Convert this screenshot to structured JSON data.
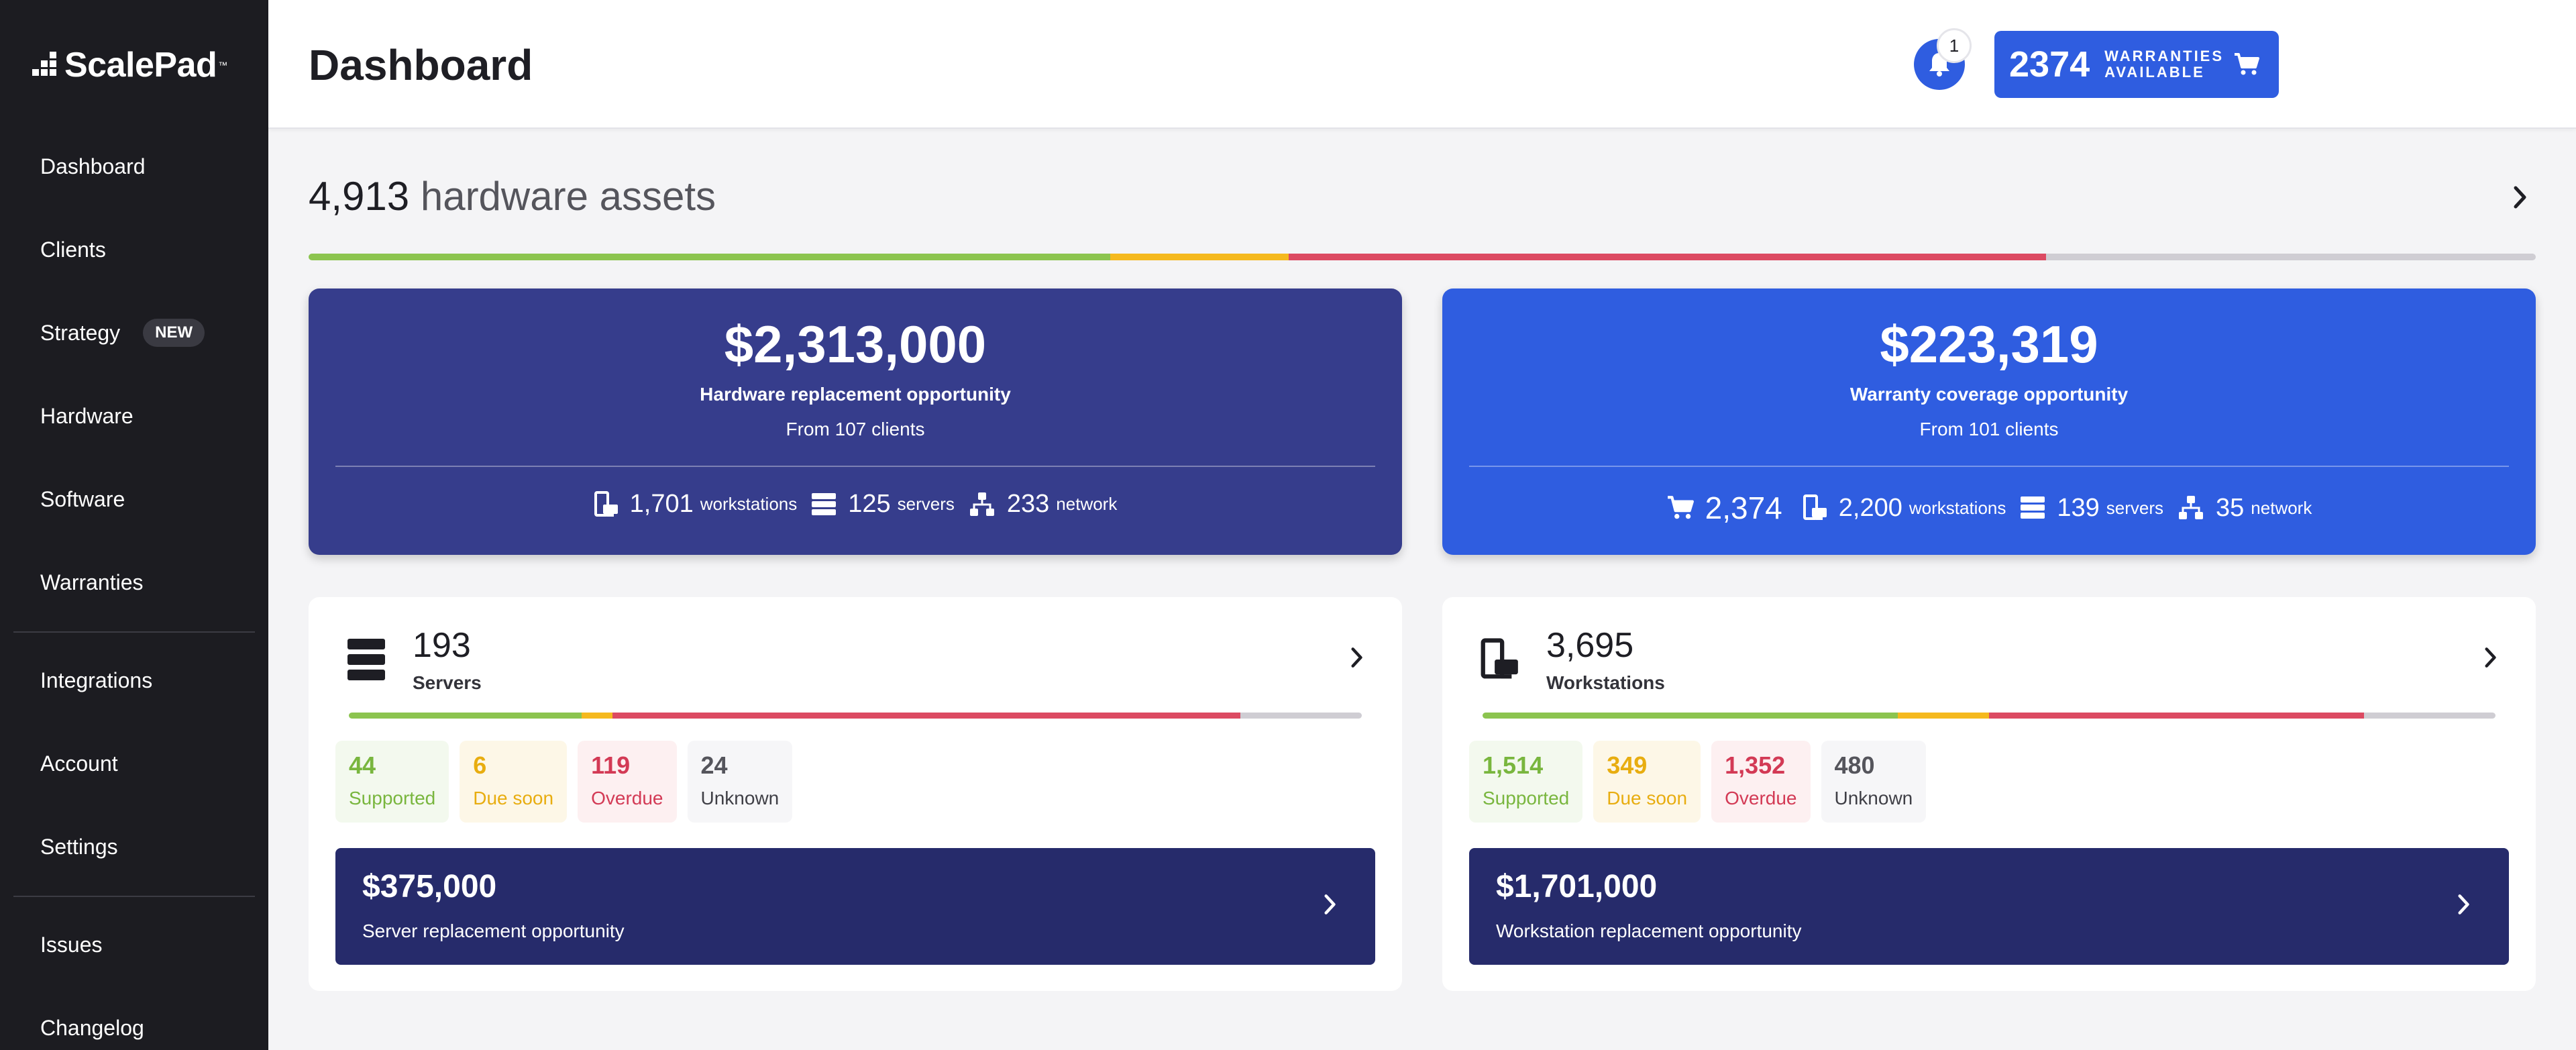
{
  "app": {
    "logo_text": "ScalePad",
    "logo_tm": "™"
  },
  "sidebar": {
    "items": [
      {
        "label": "Dashboard"
      },
      {
        "label": "Clients"
      },
      {
        "label": "Strategy",
        "badge": "NEW"
      },
      {
        "label": "Hardware"
      },
      {
        "label": "Software"
      },
      {
        "label": "Warranties"
      },
      {
        "label": "Integrations"
      },
      {
        "label": "Account"
      },
      {
        "label": "Settings"
      },
      {
        "label": "Issues"
      },
      {
        "label": "Changelog"
      }
    ]
  },
  "header": {
    "title": "Dashboard",
    "notification_count": "1",
    "warranties_count": "2374",
    "warranties_label": "WARRANTIES AVAILABLE",
    "icons": [
      "bell-icon",
      "cart-icon"
    ]
  },
  "assets": {
    "count": "4,913",
    "label": "hardware assets",
    "distribution": {
      "supported": 0.36,
      "due_soon": 0.08,
      "overdue": 0.34,
      "unknown": 0.22
    }
  },
  "hardware_opportunity": {
    "amount": "$2,313,000",
    "label": "Hardware replacement opportunity",
    "sub": "From 107 clients",
    "stats": [
      {
        "icon": "workstation-icon",
        "value": "1,701",
        "unit": "workstations"
      },
      {
        "icon": "server-icon",
        "value": "125",
        "unit": "servers"
      },
      {
        "icon": "network-icon",
        "value": "233",
        "unit": "network"
      }
    ]
  },
  "warranty_opportunity": {
    "amount": "$223,319",
    "label": "Warranty coverage opportunity",
    "sub": "From 101 clients",
    "stats": [
      {
        "icon": "cart-icon",
        "value": "2,374",
        "unit": ""
      },
      {
        "icon": "workstation-icon",
        "value": "2,200",
        "unit": "workstations"
      },
      {
        "icon": "server-icon",
        "value": "139",
        "unit": "servers"
      },
      {
        "icon": "network-icon",
        "value": "35",
        "unit": "network"
      }
    ]
  },
  "servers": {
    "count": "193",
    "name": "Servers",
    "distribution": {
      "supported": 0.23,
      "due_soon": 0.03,
      "overdue": 0.62,
      "unknown": 0.12
    },
    "chips": [
      {
        "value": "44",
        "label": "Supported",
        "status": "green"
      },
      {
        "value": "6",
        "label": "Due soon",
        "status": "yellow"
      },
      {
        "value": "119",
        "label": "Overdue",
        "status": "red"
      },
      {
        "value": "24",
        "label": "Unknown",
        "status": "grey"
      }
    ],
    "replacement_amount": "$375,000",
    "replacement_label": "Server replacement opportunity"
  },
  "workstations": {
    "count": "3,695",
    "name": "Workstations",
    "distribution": {
      "supported": 0.41,
      "due_soon": 0.09,
      "overdue": 0.37,
      "unknown": 0.13
    },
    "chips": [
      {
        "value": "1,514",
        "label": "Supported",
        "status": "green"
      },
      {
        "value": "349",
        "label": "Due soon",
        "status": "yellow"
      },
      {
        "value": "1,352",
        "label": "Overdue",
        "status": "red"
      },
      {
        "value": "480",
        "label": "Unknown",
        "status": "grey"
      }
    ],
    "replacement_amount": "$1,701,000",
    "replacement_label": "Workstation replacement opportunity"
  },
  "colors": {
    "sidebar": "#1c1c21",
    "primary_blue": "#2f5de0",
    "navy": "#363d8c",
    "dark_navy": "#262b6b",
    "supported": "#8cc44f",
    "due_soon": "#f5b91e",
    "overdue": "#dc4a62",
    "unknown": "#cfcdd3"
  }
}
